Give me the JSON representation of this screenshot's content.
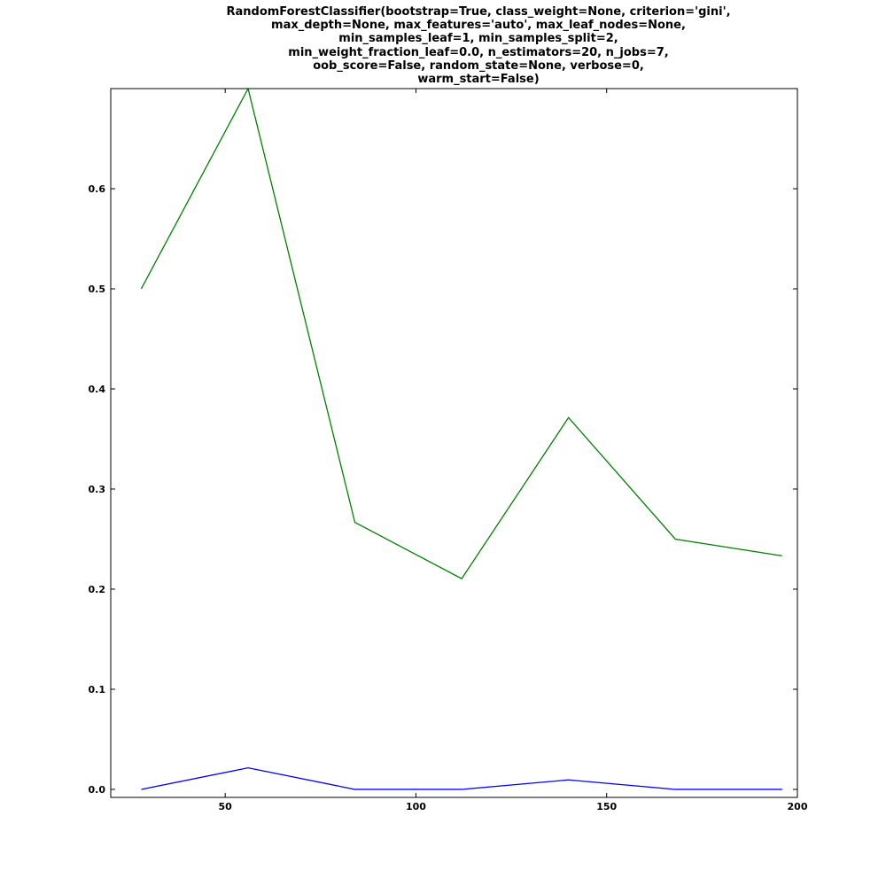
{
  "chart_data": {
    "type": "line",
    "title_lines": [
      "RandomForestClassifier(bootstrap=True, class_weight=None, criterion='gini',",
      "max_depth=None, max_features='auto', max_leaf_nodes=None,",
      "min_samples_leaf=1, min_samples_split=2,",
      "min_weight_fraction_leaf=0.0, n_estimators=20, n_jobs=7,",
      "oob_score=False, random_state=None, verbose=0,",
      "warm_start=False)"
    ],
    "xlabel": "",
    "ylabel": "",
    "xlim": [
      20,
      200
    ],
    "ylim": [
      -0.008,
      0.7
    ],
    "x_ticks": [
      50,
      100,
      150,
      200
    ],
    "y_ticks": [
      0.0,
      0.1,
      0.2,
      0.3,
      0.4,
      0.5,
      0.6
    ],
    "y_tick_labels": [
      "0.0",
      "0.1",
      "0.2",
      "0.3",
      "0.4",
      "0.5",
      "0.6"
    ],
    "x_tick_labels": [
      "50",
      "100",
      "150",
      "200"
    ],
    "grid": false,
    "x": [
      28,
      56,
      84,
      112,
      140,
      168,
      196
    ],
    "series": [
      {
        "color": "#0000ff",
        "values": [
          0.0,
          0.0215,
          0.0,
          0.0,
          0.0095,
          0.0,
          0.0
        ]
      },
      {
        "color": "#008000",
        "values": [
          0.5,
          0.7,
          0.2667,
          0.2105,
          0.3714,
          0.25,
          0.2333
        ]
      }
    ]
  }
}
